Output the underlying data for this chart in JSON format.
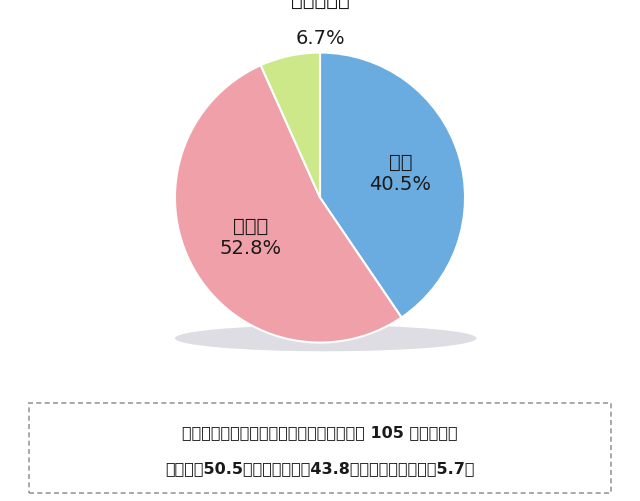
{
  "slices": [
    {
      "label": "はい",
      "value": 40.5,
      "color": "#6aace0"
    },
    {
      "label": "いいえ",
      "value": 52.8,
      "color": "#f0a0a8"
    },
    {
      "label": "わからない",
      "value": 6.7,
      "color": "#cce888"
    }
  ],
  "footnote_line1": "首都圈（東京・神奈川・千葉・埼玉）在住 105 人の場合、",
  "footnote_line2": "「はい」50.5％、「いいえ」43.8％、「わからない」5.7％",
  "bg_color": "#ffffff",
  "text_color": "#1a1a1a",
  "label_fontsize": 14,
  "footnote_fontsize": 11.5,
  "shadow_color": "#c0c0c8",
  "startangle": 90
}
